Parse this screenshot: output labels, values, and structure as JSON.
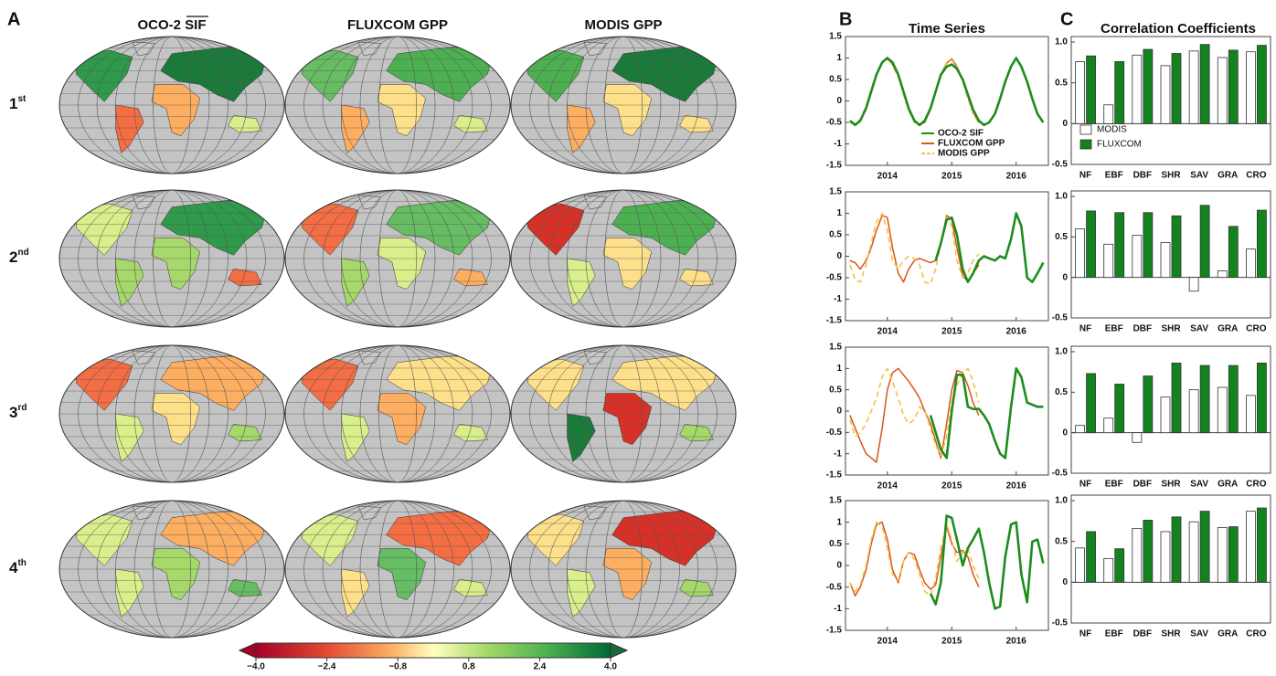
{
  "panel_labels": [
    "A",
    "B",
    "C"
  ],
  "map_titles": [
    "OCO-2 SIF",
    "FLUXCOM GPP",
    "MODIS GPP"
  ],
  "row_labels": [
    {
      "main": "1",
      "sup": "st"
    },
    {
      "main": "2",
      "sup": "nd"
    },
    {
      "main": "3",
      "sup": "rd"
    },
    {
      "main": "4",
      "sup": "th"
    }
  ],
  "colorbar": {
    "lim": [
      -4,
      4
    ],
    "ticks": [
      {
        "value": -4,
        "label": "−4.0"
      },
      {
        "value": -2.4,
        "label": "−2.4"
      },
      {
        "value": -0.8,
        "label": "−0.8"
      },
      0.8,
      2.4,
      {
        "value": 4,
        "label": "4.0"
      }
    ]
  },
  "chart_data": [
    {
      "type": "line",
      "title": "Time Series",
      "xlim": [
        2013.35,
        2016.5
      ],
      "xticks": [
        2014,
        2015,
        2016
      ],
      "ylim": [
        -1.5,
        1.5
      ],
      "yticks": [
        -1.5,
        -1,
        -0.5,
        0,
        0.5,
        1,
        1.5
      ],
      "legend": true,
      "series": [
        {
          "name": "OCO-2 SIF",
          "color": "#1e8c1e",
          "style": "solid",
          "x": [
            2013.42,
            2013.5,
            2013.58,
            2013.67,
            2013.75,
            2013.83,
            2013.92,
            2014.0,
            2014.08,
            2014.17,
            2014.25,
            2014.33,
            2014.42,
            2014.5,
            2014.58,
            2014.67,
            2014.75,
            2014.83,
            2014.92,
            2015.0,
            2015.08,
            2015.17,
            2015.25,
            2015.33,
            2015.42,
            2015.5,
            2015.58,
            2015.67,
            2015.75,
            2015.83,
            2015.92,
            2016.0,
            2016.08,
            2016.17,
            2016.25,
            2016.33,
            2016.42
          ],
          "values": [
            -0.46,
            -0.56,
            -0.46,
            -0.17,
            0.22,
            0.61,
            0.9,
            1.0,
            0.9,
            0.61,
            0.22,
            -0.17,
            -0.46,
            -0.56,
            -0.46,
            -0.17,
            0.22,
            0.61,
            0.8,
            0.85,
            0.75,
            0.5,
            0.15,
            -0.2,
            -0.46,
            -0.56,
            -0.5,
            -0.3,
            0.05,
            0.45,
            0.8,
            1.0,
            0.8,
            0.45,
            0.05,
            -0.3,
            -0.5
          ]
        },
        {
          "name": "FLUXCOM GPP",
          "color": "#d9541a",
          "style": "solid",
          "x": [
            2013.42,
            2013.5,
            2013.58,
            2013.67,
            2013.75,
            2013.83,
            2013.92,
            2014.0,
            2014.08,
            2014.17,
            2014.25,
            2014.33,
            2014.42,
            2014.5,
            2014.58,
            2014.67,
            2014.75,
            2014.83,
            2014.92,
            2015.0,
            2015.08,
            2015.17,
            2015.25,
            2015.33,
            2015.42
          ],
          "values": [
            -0.5,
            -0.55,
            -0.45,
            -0.15,
            0.25,
            0.62,
            0.9,
            0.98,
            0.85,
            0.6,
            0.2,
            -0.2,
            -0.48,
            -0.55,
            -0.5,
            -0.2,
            0.2,
            0.6,
            0.88,
            0.98,
            0.8,
            0.5,
            0.1,
            -0.25,
            -0.5
          ]
        },
        {
          "name": "MODIS GPP",
          "color": "#f5c040",
          "style": "dashed",
          "x": [
            2013.42,
            2013.5,
            2013.58,
            2013.67,
            2013.75,
            2013.83,
            2013.92,
            2014.0,
            2014.08,
            2014.17,
            2014.25,
            2014.33,
            2014.42,
            2014.5,
            2014.58,
            2014.67,
            2014.75,
            2014.83,
            2014.92,
            2015.0,
            2015.08,
            2015.17,
            2015.25,
            2015.33,
            2015.42
          ],
          "values": [
            -0.5,
            -0.52,
            -0.42,
            -0.12,
            0.28,
            0.65,
            0.92,
            1.0,
            0.82,
            0.55,
            0.15,
            -0.22,
            -0.5,
            -0.55,
            -0.48,
            -0.18,
            0.22,
            0.62,
            0.9,
            0.95,
            0.78,
            0.45,
            0.05,
            -0.3,
            -0.52
          ]
        }
      ]
    },
    {
      "type": "line",
      "xlim": [
        2013.35,
        2016.5
      ],
      "xticks": [
        2014,
        2015,
        2016
      ],
      "ylim": [
        -1.5,
        1.5
      ],
      "yticks": [
        -1.5,
        -1,
        -0.5,
        0,
        0.5,
        1,
        1.5
      ],
      "series": [
        {
          "color": "#1e8c1e",
          "style": "solid",
          "x": [
            2014.75,
            2014.83,
            2014.92,
            2015.0,
            2015.08,
            2015.17,
            2015.25,
            2015.33,
            2015.42,
            2015.5,
            2015.58,
            2015.67,
            2015.75,
            2015.83,
            2015.92,
            2016.0,
            2016.08,
            2016.17,
            2016.25,
            2016.33,
            2016.42
          ],
          "values": [
            -0.1,
            0.3,
            0.85,
            0.9,
            0.5,
            -0.3,
            -0.6,
            -0.4,
            -0.1,
            0.0,
            -0.05,
            -0.1,
            0.0,
            -0.05,
            0.4,
            1.0,
            0.7,
            -0.5,
            -0.6,
            -0.4,
            -0.15
          ]
        },
        {
          "color": "#d9541a",
          "style": "solid",
          "x": [
            2013.42,
            2013.5,
            2013.58,
            2013.67,
            2013.75,
            2013.83,
            2013.92,
            2014.0,
            2014.08,
            2014.17,
            2014.25,
            2014.33,
            2014.42,
            2014.5,
            2014.58,
            2014.67,
            2014.75,
            2014.83,
            2014.92,
            2015.0,
            2015.08,
            2015.17,
            2015.25,
            2015.33,
            2015.42
          ],
          "values": [
            -0.1,
            -0.15,
            -0.3,
            -0.1,
            0.2,
            0.6,
            0.95,
            0.9,
            0.2,
            -0.4,
            -0.6,
            -0.3,
            -0.1,
            -0.05,
            -0.1,
            -0.15,
            -0.1,
            0.3,
            0.95,
            0.85,
            0.2,
            -0.45,
            -0.6,
            -0.4,
            -0.2
          ]
        },
        {
          "color": "#f5c040",
          "style": "dashed",
          "x": [
            2013.42,
            2013.5,
            2013.58,
            2013.67,
            2013.75,
            2013.83,
            2013.92,
            2014.0,
            2014.08,
            2014.17,
            2014.25,
            2014.33,
            2014.42,
            2014.5,
            2014.58,
            2014.67,
            2014.75,
            2014.83,
            2014.92,
            2015.0,
            2015.08,
            2015.17,
            2015.25,
            2015.33,
            2015.42
          ],
          "values": [
            -0.2,
            -0.55,
            -0.6,
            -0.2,
            0.3,
            0.8,
            1.0,
            0.6,
            -0.1,
            -0.3,
            -0.1,
            0.0,
            -0.05,
            -0.2,
            -0.6,
            -0.65,
            -0.3,
            0.3,
            0.9,
            0.7,
            -0.1,
            -0.5,
            -0.4,
            -0.1,
            0.05
          ]
        }
      ]
    },
    {
      "type": "line",
      "xlim": [
        2013.35,
        2016.5
      ],
      "xticks": [
        2014,
        2015,
        2016
      ],
      "ylim": [
        -1.5,
        1.5
      ],
      "yticks": [
        -1.5,
        -1,
        -0.5,
        0,
        0.5,
        1,
        1.5
      ],
      "series": [
        {
          "color": "#1e8c1e",
          "style": "solid",
          "x": [
            2014.67,
            2014.75,
            2014.83,
            2014.92,
            2015.0,
            2015.08,
            2015.17,
            2015.25,
            2015.33,
            2015.42,
            2015.5,
            2015.58,
            2015.67,
            2015.75,
            2015.83,
            2015.92,
            2016.0,
            2016.08,
            2016.17,
            2016.25,
            2016.33,
            2016.42
          ],
          "values": [
            -0.1,
            -0.5,
            -0.9,
            -1.1,
            0.0,
            0.85,
            0.85,
            0.1,
            0.05,
            0.05,
            -0.1,
            -0.3,
            -0.7,
            -1.0,
            -1.1,
            0.1,
            1.0,
            0.8,
            0.2,
            0.15,
            0.1,
            0.1
          ]
        },
        {
          "color": "#d9541a",
          "style": "solid",
          "x": [
            2013.42,
            2013.5,
            2013.58,
            2013.67,
            2013.75,
            2013.83,
            2013.92,
            2014.0,
            2014.08,
            2014.17,
            2014.25,
            2014.33,
            2014.42,
            2014.5,
            2014.58,
            2014.67,
            2014.75,
            2014.83,
            2014.92,
            2015.0,
            2015.08,
            2015.17,
            2015.25,
            2015.33,
            2015.42
          ],
          "values": [
            -0.1,
            -0.4,
            -0.7,
            -1.0,
            -1.1,
            -1.2,
            -0.4,
            0.5,
            0.9,
            1.0,
            0.85,
            0.7,
            0.5,
            0.3,
            0.0,
            -0.3,
            -0.7,
            -1.1,
            -0.3,
            0.5,
            0.95,
            0.9,
            0.6,
            0.2,
            -0.1
          ]
        },
        {
          "color": "#f5c040",
          "style": "dashed",
          "x": [
            2013.42,
            2013.5,
            2013.58,
            2013.67,
            2013.75,
            2013.83,
            2013.92,
            2014.0,
            2014.08,
            2014.17,
            2014.25,
            2014.33,
            2014.42,
            2014.5,
            2014.58,
            2014.67,
            2014.75,
            2014.83,
            2014.92,
            2015.0,
            2015.08,
            2015.17,
            2015.25,
            2015.33,
            2015.42
          ],
          "values": [
            -0.2,
            -0.6,
            -0.5,
            -0.3,
            0.0,
            0.3,
            0.8,
            1.0,
            0.7,
            0.3,
            -0.1,
            -0.3,
            -0.2,
            0.1,
            0.0,
            -0.4,
            -0.8,
            -1.05,
            -0.6,
            0.2,
            0.6,
            0.9,
            1.0,
            0.7,
            0.2
          ]
        }
      ]
    },
    {
      "type": "line",
      "xlim": [
        2013.35,
        2016.5
      ],
      "xticks": [
        2014,
        2015,
        2016
      ],
      "ylim": [
        -1.5,
        1.5
      ],
      "yticks": [
        -1.5,
        -1,
        -0.5,
        0,
        0.5,
        1,
        1.5
      ],
      "series": [
        {
          "color": "#1e8c1e",
          "style": "solid",
          "x": [
            2014.67,
            2014.75,
            2014.83,
            2014.92,
            2015.0,
            2015.08,
            2015.17,
            2015.25,
            2015.33,
            2015.42,
            2015.5,
            2015.58,
            2015.67,
            2015.75,
            2015.83,
            2015.92,
            2016.0,
            2016.08,
            2016.17,
            2016.25,
            2016.33,
            2016.42
          ],
          "values": [
            -0.65,
            -0.9,
            -0.4,
            1.15,
            1.1,
            0.6,
            0.0,
            0.4,
            0.6,
            0.85,
            0.3,
            -0.4,
            -1.0,
            -0.95,
            0.2,
            0.95,
            1.0,
            -0.2,
            -0.85,
            0.55,
            0.6,
            0.05
          ]
        },
        {
          "color": "#d9541a",
          "style": "solid",
          "x": [
            2013.42,
            2013.5,
            2013.58,
            2013.67,
            2013.75,
            2013.83,
            2013.92,
            2014.0,
            2014.08,
            2014.17,
            2014.25,
            2014.33,
            2014.42,
            2014.5,
            2014.58,
            2014.67,
            2014.75,
            2014.83,
            2014.92,
            2015.0,
            2015.08,
            2015.17,
            2015.25,
            2015.33,
            2015.42
          ],
          "values": [
            -0.4,
            -0.7,
            -0.5,
            -0.1,
            0.5,
            0.95,
            1.0,
            0.6,
            -0.1,
            -0.4,
            0.1,
            0.3,
            0.25,
            -0.1,
            -0.4,
            -0.55,
            -0.45,
            0.2,
            0.9,
            0.5,
            0.3,
            0.35,
            0.2,
            -0.2,
            -0.5
          ]
        },
        {
          "color": "#f5c040",
          "style": "dashed",
          "x": [
            2013.42,
            2013.5,
            2013.58,
            2013.67,
            2013.75,
            2013.83,
            2013.92,
            2014.0,
            2014.08,
            2014.17,
            2014.25,
            2014.33,
            2014.42,
            2014.5,
            2014.58,
            2014.67,
            2014.75,
            2014.83,
            2014.92,
            2015.0,
            2015.08,
            2015.17,
            2015.25,
            2015.33,
            2015.42
          ],
          "values": [
            -0.4,
            -0.6,
            -0.45,
            0.0,
            0.6,
            1.0,
            0.9,
            0.4,
            -0.2,
            -0.35,
            0.1,
            0.3,
            0.15,
            -0.2,
            -0.6,
            -0.7,
            -0.3,
            0.4,
            0.95,
            0.6,
            0.1,
            0.3,
            0.4,
            0.0,
            -0.3
          ]
        }
      ]
    },
    {
      "type": "bar",
      "title": "Correlation Coefficients",
      "categories": [
        "NF",
        "EBF",
        "DBF",
        "SHR",
        "SAV",
        "GRA",
        "CRO"
      ],
      "ylim": [
        -0.5,
        1
      ],
      "yticks": [
        -0.5,
        0,
        0.5,
        {
          "value": 1,
          "label": "1.0"
        }
      ],
      "legend": true,
      "series": [
        {
          "name": "MODIS",
          "color": "#ffffff",
          "values": [
            0.76,
            0.23,
            0.84,
            0.71,
            0.89,
            0.81,
            0.88
          ]
        },
        {
          "name": "FLUXCOM",
          "color": "#13831f",
          "values": [
            0.83,
            0.76,
            0.91,
            0.86,
            0.97,
            0.9,
            0.96
          ]
        }
      ]
    },
    {
      "type": "bar",
      "categories": [
        "NF",
        "EBF",
        "DBF",
        "SHR",
        "SAV",
        "GRA",
        "CRO"
      ],
      "ylim": [
        -0.5,
        1
      ],
      "yticks": [
        -0.5,
        0,
        0.5,
        {
          "value": 1,
          "label": "1.0"
        }
      ],
      "series": [
        {
          "color": "#ffffff",
          "values": [
            0.6,
            0.41,
            0.52,
            0.43,
            -0.17,
            0.08,
            0.35
          ]
        },
        {
          "color": "#13831f",
          "values": [
            0.82,
            0.8,
            0.8,
            0.76,
            0.89,
            0.63,
            0.83
          ]
        }
      ]
    },
    {
      "type": "bar",
      "categories": [
        "NF",
        "EBF",
        "DBF",
        "SHR",
        "SAV",
        "GRA",
        "CRO"
      ],
      "ylim": [
        -0.5,
        1
      ],
      "yticks": [
        -0.5,
        0,
        0.5,
        {
          "value": 1,
          "label": "1.0"
        }
      ],
      "series": [
        {
          "color": "#ffffff",
          "values": [
            0.09,
            0.18,
            -0.12,
            0.44,
            0.53,
            0.56,
            0.46
          ]
        },
        {
          "color": "#13831f",
          "values": [
            0.73,
            0.6,
            0.7,
            0.86,
            0.83,
            0.83,
            0.86
          ]
        }
      ]
    },
    {
      "type": "bar",
      "categories": [
        "NF",
        "EBF",
        "DBF",
        "SHR",
        "SAV",
        "GRA",
        "CRO"
      ],
      "ylim": [
        -0.5,
        1
      ],
      "yticks": [
        -0.5,
        0,
        0.5,
        {
          "value": 1,
          "label": "1.0"
        }
      ],
      "series": [
        {
          "color": "#ffffff",
          "values": [
            0.42,
            0.29,
            0.66,
            0.62,
            0.74,
            0.67,
            0.87
          ]
        },
        {
          "color": "#13831f",
          "values": [
            0.62,
            0.41,
            0.76,
            0.8,
            0.87,
            0.68,
            0.91
          ]
        }
      ]
    }
  ]
}
